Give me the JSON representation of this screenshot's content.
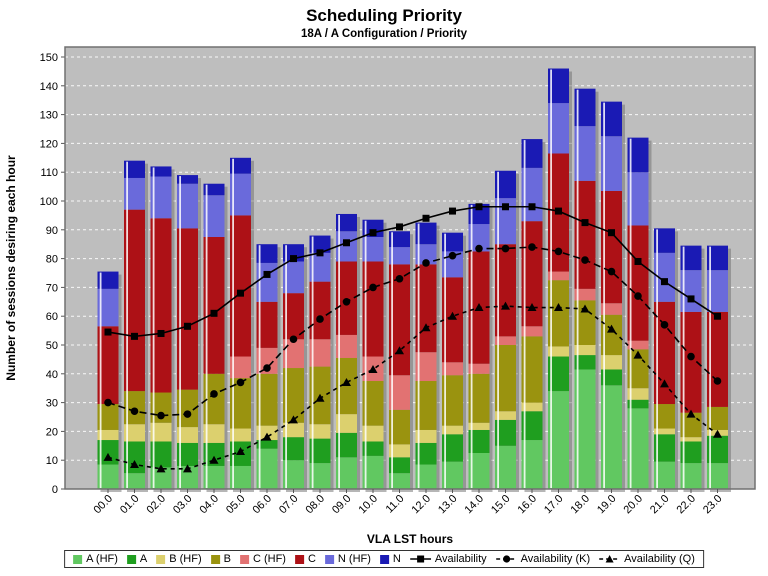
{
  "title": "Scheduling Priority",
  "subtitle": "18A / A Configuration /  Priority",
  "chart_data": {
    "type": "bar",
    "stacked": true,
    "title": "Scheduling Priority",
    "subtitle": "18A / A Configuration /  Priority",
    "xlabel": "VLA LST hours",
    "ylabel": "Number of sessions desiring each hour",
    "ylim": [
      0,
      150
    ],
    "ytick_step": 10,
    "grid": true,
    "legend_position": "bottom",
    "plot_bg_color": "#BEBEBE",
    "grid_color": "#FFFFFF",
    "categories": [
      "00.0",
      "01.0",
      "02.0",
      "03.0",
      "04.0",
      "05.0",
      "06.0",
      "07.0",
      "08.0",
      "09.0",
      "10.0",
      "11.0",
      "12.0",
      "13.0",
      "14.0",
      "15.0",
      "16.0",
      "17.0",
      "18.0",
      "19.0",
      "20.0",
      "21.0",
      "22.0",
      "23.0"
    ],
    "series": [
      {
        "name": "A (HF)",
        "color": "#61C861",
        "values": [
          8.5,
          5.5,
          7.5,
          8,
          8,
          8,
          14,
          10,
          9,
          11,
          11.5,
          5.5,
          8.5,
          9.5,
          12.5,
          15,
          17,
          34,
          41.5,
          36,
          28,
          9.5,
          9,
          9
        ]
      },
      {
        "name": "A",
        "color": "#1F9E1F",
        "values": [
          8.5,
          11,
          9,
          8,
          8,
          8.5,
          3,
          8,
          8.5,
          8.5,
          5,
          5.5,
          7.5,
          9.5,
          8,
          9,
          10,
          12,
          5,
          5.5,
          3,
          9.5,
          7.5,
          9.5
        ]
      },
      {
        "name": "B (HF)",
        "color": "#DCD06E",
        "values": [
          3.5,
          6,
          6.5,
          5.5,
          6.5,
          4.5,
          5,
          5,
          5,
          6.5,
          5.5,
          4.5,
          4.5,
          3,
          2.5,
          3,
          3,
          3.5,
          3.5,
          5,
          4,
          2,
          1.5,
          2
        ]
      },
      {
        "name": "B",
        "color": "#9A930F",
        "values": [
          9,
          11.5,
          10.5,
          13,
          17.5,
          17.5,
          18,
          19,
          20,
          19.5,
          15.5,
          12,
          17,
          17.5,
          17,
          23,
          23,
          23,
          15.5,
          14,
          13.5,
          8.5,
          8.5,
          8
        ]
      },
      {
        "name": "C (HF)",
        "color": "#E27272",
        "values": [
          0,
          0,
          0,
          0,
          0,
          7.5,
          9,
          10,
          9.5,
          8,
          8.5,
          12,
          10,
          4.5,
          3.5,
          3,
          3.5,
          3,
          4,
          4,
          3,
          0,
          0,
          0
        ]
      },
      {
        "name": "C",
        "color": "#AD1116",
        "values": [
          27,
          63,
          60.5,
          56,
          47.5,
          49,
          16,
          16,
          20,
          25.5,
          33,
          38.5,
          30.5,
          29.5,
          39,
          32,
          36.5,
          41,
          37.5,
          39,
          40,
          35.5,
          35,
          33
        ]
      },
      {
        "name": "N (HF)",
        "color": "#6A6ADB",
        "values": [
          13,
          11,
          14.5,
          15.5,
          14.5,
          14.5,
          13.5,
          11,
          10,
          10.5,
          8.5,
          6,
          7,
          9,
          9.5,
          16,
          18.5,
          17.5,
          19,
          19,
          18.5,
          17,
          14.5,
          14.5
        ]
      },
      {
        "name": "N",
        "color": "#1A1AB4",
        "values": [
          6,
          6,
          3.5,
          3,
          4,
          5.5,
          6.5,
          6,
          6,
          6,
          6,
          5.5,
          7.5,
          6.5,
          7,
          9.5,
          10,
          12,
          13,
          12,
          12,
          8.5,
          8.5,
          8.5
        ]
      }
    ],
    "lines": [
      {
        "name": "Availability",
        "marker": "square",
        "dash": "none",
        "color": "#000000",
        "values": [
          54.5,
          53,
          54,
          56.5,
          61,
          68,
          74.5,
          80,
          82,
          85.5,
          89,
          91,
          94,
          96.5,
          98,
          98,
          98,
          96.5,
          92.5,
          89,
          79,
          72,
          66,
          60
        ]
      },
      {
        "name": "Availability (K)",
        "marker": "circle",
        "dash": "7 4",
        "color": "#000000",
        "values": [
          30,
          27,
          25.5,
          26,
          33,
          37,
          42,
          52,
          59,
          65,
          70,
          73,
          78.5,
          81,
          83.5,
          83.5,
          84,
          82.5,
          79.5,
          75.5,
          67,
          57,
          46,
          37.5
        ]
      },
      {
        "name": "Availability (Q)",
        "marker": "triangle",
        "dash": "4 4",
        "color": "#000000",
        "values": [
          11,
          8.5,
          7,
          7,
          10,
          13,
          18,
          24,
          31.5,
          37,
          41.5,
          48,
          56,
          60,
          63,
          63.5,
          63,
          63,
          62.5,
          55.5,
          46.5,
          36.5,
          26,
          19
        ]
      }
    ]
  }
}
